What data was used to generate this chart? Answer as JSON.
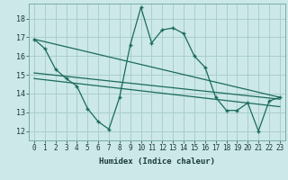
{
  "xlabel": "Humidex (Indice chaleur)",
  "bg_color": "#cce8e8",
  "grid_color": "#aacece",
  "line_color": "#1a6b5a",
  "xlim": [
    -0.5,
    23.5
  ],
  "ylim": [
    11.5,
    18.8
  ],
  "yticks": [
    12,
    13,
    14,
    15,
    16,
    17,
    18
  ],
  "xticks": [
    0,
    1,
    2,
    3,
    4,
    5,
    6,
    7,
    8,
    9,
    10,
    11,
    12,
    13,
    14,
    15,
    16,
    17,
    18,
    19,
    20,
    21,
    22,
    23
  ],
  "line1_x": [
    0,
    1,
    2,
    3,
    4,
    5,
    6,
    7,
    8,
    9,
    10,
    11,
    12,
    13,
    14,
    15,
    16,
    17,
    18,
    19,
    20,
    21,
    22,
    23
  ],
  "line1_y": [
    16.9,
    16.4,
    15.3,
    14.8,
    14.4,
    13.2,
    12.5,
    12.1,
    13.8,
    16.6,
    18.6,
    16.7,
    17.4,
    17.5,
    17.2,
    16.0,
    15.4,
    13.8,
    13.1,
    13.1,
    13.5,
    12.0,
    13.6,
    13.8
  ],
  "line2_x": [
    0,
    23
  ],
  "line2_y": [
    16.9,
    13.8
  ],
  "line3_x": [
    0,
    23
  ],
  "line3_y": [
    15.1,
    13.7
  ],
  "line4_x": [
    0,
    23
  ],
  "line4_y": [
    14.8,
    13.3
  ]
}
